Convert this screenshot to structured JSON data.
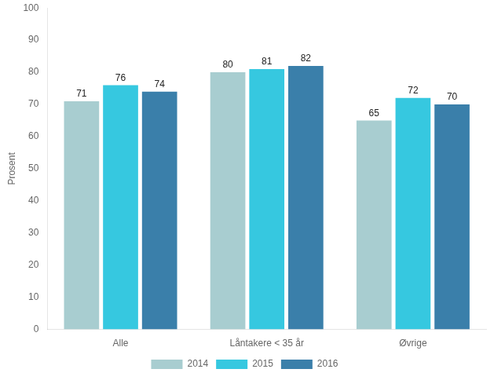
{
  "chart_data": {
    "type": "bar",
    "categories": [
      "Alle",
      "Låntakere < 35 år",
      "Øvrige"
    ],
    "series": [
      {
        "name": "2014",
        "color": "#a8cdd0",
        "values": [
          71,
          80,
          65
        ]
      },
      {
        "name": "2015",
        "color": "#36c8e0",
        "values": [
          76,
          81,
          72
        ]
      },
      {
        "name": "2016",
        "color": "#3a7faa",
        "values": [
          74,
          82,
          70
        ]
      }
    ],
    "ylabel": "Prosent",
    "ylim": [
      0,
      100
    ],
    "yticks": [
      0,
      10,
      20,
      30,
      40,
      50,
      60,
      70,
      80,
      90,
      100
    ],
    "grid": false,
    "legend": "bottom",
    "data_labels": true
  }
}
